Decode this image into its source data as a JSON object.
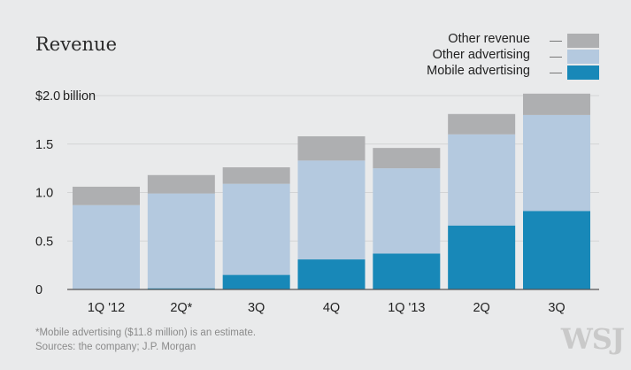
{
  "title": "Revenue",
  "legend": {
    "other_revenue": "Other revenue",
    "other_advertising": "Other advertising",
    "mobile_advertising": "Mobile advertising"
  },
  "colors": {
    "mobile_advertising": "#1888b8",
    "other_advertising": "#b4c9df",
    "other_revenue": "#aeafb1",
    "background": "#e9eaeb",
    "gridline": "#d3d4d5"
  },
  "footnote": {
    "line1": "*Mobile advertising ($11.8 million) is an estimate.",
    "line2": "Sources: the company; J.P. Morgan"
  },
  "watermark": "WSJ",
  "chart_data": {
    "type": "bar",
    "stacked": true,
    "title": "Revenue",
    "categories": [
      "1Q '12",
      "2Q*",
      "3Q",
      "4Q",
      "1Q '13",
      "2Q",
      "3Q"
    ],
    "series": [
      {
        "name": "Mobile advertising",
        "values": [
          0,
          0.012,
          0.15,
          0.31,
          0.37,
          0.66,
          0.81
        ]
      },
      {
        "name": "Other advertising",
        "values": [
          0.87,
          0.978,
          0.94,
          1.02,
          0.88,
          0.94,
          0.99
        ]
      },
      {
        "name": "Other revenue",
        "values": [
          0.19,
          0.19,
          0.17,
          0.25,
          0.21,
          0.21,
          0.22
        ]
      }
    ],
    "ylim": [
      0,
      2.0
    ],
    "yticks": [
      0,
      0.5,
      1.0,
      1.5,
      2.0
    ],
    "ytick_labels": [
      "0",
      "0.5",
      "1.0",
      "1.5",
      "$2.0"
    ],
    "yunit_label": "billion",
    "xlabel": "",
    "ylabel": "",
    "grid": true,
    "legend_position": "top-right"
  }
}
